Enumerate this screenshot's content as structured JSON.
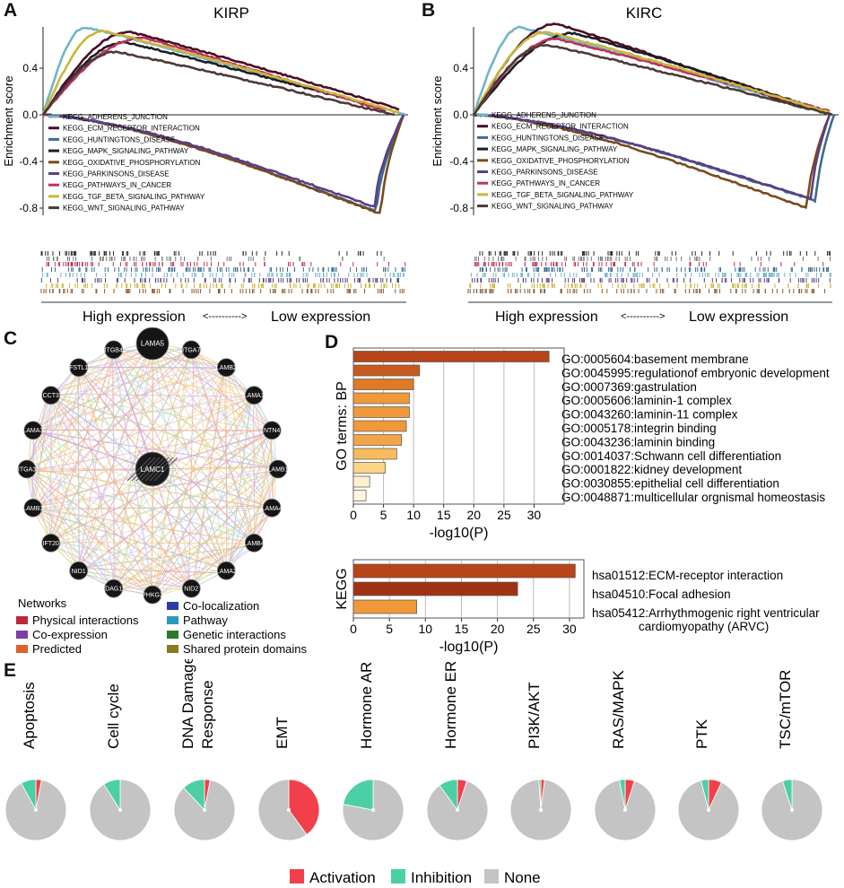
{
  "panels": {
    "a": "A",
    "b": "B",
    "c": "C",
    "d": "D",
    "e": "E"
  },
  "gsea": {
    "ylabel": "Enrichment score",
    "yticks": [
      "0.4",
      "0.0",
      "-0.4",
      "-0.8"
    ],
    "exp_high": "High expression",
    "exp_arrow": "<---------->",
    "exp_low": "Low expression",
    "kirp": {
      "title": "KIRP"
    },
    "kirc": {
      "title": "KIRC"
    },
    "pathways": [
      {
        "name": "KEGG_ADHERENS_JUNCTION",
        "color": "#6fb6c8"
      },
      {
        "name": "KEGG_ECM_RECEPTOR_INTERACTION",
        "color": "#4a0d25"
      },
      {
        "name": "KEGG_HUNTINGTONS_DISEASE",
        "color": "#3c6b8e"
      },
      {
        "name": "KEGG_MAPK_SIGNALING_PATHWAY",
        "color": "#1c1c24"
      },
      {
        "name": "KEGG_OXIDATIVE_PHOSPHORYLATION",
        "color": "#7a4a1c"
      },
      {
        "name": "KEGG_PARKINSONS_DISEASE",
        "color": "#5a3f86"
      },
      {
        "name": "KEGG_PATHWAYS_IN_CANCER",
        "color": "#c0325a"
      },
      {
        "name": "KEGG_TGF_BETA_SIGNALING_PATHWAY",
        "color": "#c9b63a"
      },
      {
        "name": "KEGG_WNT_SIGNALING_PATHWAY",
        "color": "#4a3a38"
      }
    ]
  },
  "network": {
    "center": "LAMC1",
    "nodes": [
      "LAMA5",
      "ITGA7",
      "LAMB2",
      "LAMA1",
      "NTN4",
      "LAMB1",
      "LAMA4",
      "LAMB4",
      "LAMA2",
      "NID2",
      "PHKG2",
      "DAG1",
      "NID1",
      "IFT20",
      "LAMB3",
      "ITGA3",
      "LAMA3",
      "CCT3",
      "FSTL1",
      "ITGB4"
    ],
    "legend_title": "Networks",
    "legend": [
      {
        "label": "Physical interactions",
        "color": "#c0283a"
      },
      {
        "label": "Co-expression",
        "color": "#7b3fa8"
      },
      {
        "label": "Predicted",
        "color": "#e0602a"
      },
      {
        "label": "Co-localization",
        "color": "#2a3aa8"
      },
      {
        "label": "Pathway",
        "color": "#2a9ab8"
      },
      {
        "label": "Genetic interactions",
        "color": "#2a7a2a"
      },
      {
        "label": "Shared protein domains",
        "color": "#8a7a20"
      }
    ]
  },
  "chart_data": [
    {
      "type": "bar",
      "title": "",
      "ylabel": "GO terms: BP",
      "xlabel": "-log10(P)",
      "xlim": [
        0,
        35
      ],
      "xticks": [
        "0",
        "5",
        "10",
        "15",
        "20",
        "25",
        "30"
      ],
      "categories": [
        "GO:0005604:basement membrane",
        "GO:0045995:regulationof embryonic development",
        "GO:0007369:gastrulation",
        "GO:0005606:laminin-1 complex",
        "GO:0043260:laminin-11 complex",
        "GO:0005178:integrin binding",
        "GO:0043236:laminin binding",
        "GO:0014037:Schwann cell differentiation",
        "GO:0001822:kidney development",
        "GO:0030855:epithelial cell differentiation",
        "GO:0048871:multicellular orgnismal homeostasis"
      ],
      "values": [
        32.5,
        11,
        10,
        9.3,
        9.3,
        8.8,
        8.0,
        7.2,
        5.3,
        2.7,
        2.1
      ],
      "colors": [
        "#b8441a",
        "#c85a1e",
        "#e07a26",
        "#f0983a",
        "#f0983a",
        "#f0983a",
        "#f4a448",
        "#f8bb5c",
        "#fbd584",
        "#fdf2cc",
        "#fdf6dd"
      ]
    },
    {
      "type": "bar",
      "title": "",
      "ylabel": "KEGG",
      "xlabel": "-log10(P)",
      "xlim": [
        0,
        32
      ],
      "xticks": [
        "0",
        "5",
        "10",
        "15",
        "20",
        "25",
        "30"
      ],
      "categories": [
        "hsa01512:ECM-receptor interaction",
        "hsa04510:Focal adhesion",
        "hsa05412:Arrhythmogenic right ventricular cardiomyopathy (ARVC)"
      ],
      "label_lines": [
        [
          "hsa01512:ECM-receptor interaction"
        ],
        [
          "hsa04510:Focal adhesion"
        ],
        [
          "hsa05412:Arrhythmogenic right ventricular",
          "cardiomyopathy (ARVC)"
        ]
      ],
      "values": [
        30.8,
        22.8,
        8.8
      ],
      "colors": [
        "#b8441a",
        "#a03214",
        "#f0983a"
      ]
    },
    {
      "type": "pie",
      "categories": [
        "Apoptosis",
        "Cell cycle",
        "DNA Damage\nResponse",
        "EMT",
        "Hormone AR",
        "Hormone ER",
        "PI3K/AKT",
        "RAS/MAPK",
        "PTK",
        "TSC/mTOR"
      ],
      "series": [
        {
          "name": "Activation",
          "values": [
            0.03,
            0.0,
            0.03,
            0.4,
            0.0,
            0.05,
            0.02,
            0.05,
            0.07,
            0.0
          ]
        },
        {
          "name": "Inhibition",
          "values": [
            0.08,
            0.09,
            0.12,
            0.0,
            0.22,
            0.1,
            0.01,
            0.03,
            0.04,
            0.05
          ]
        },
        {
          "name": "None",
          "values": [
            0.89,
            0.91,
            0.85,
            0.6,
            0.78,
            0.85,
            0.97,
            0.92,
            0.89,
            0.95
          ]
        }
      ],
      "colors": {
        "Activation": "#f2404a",
        "Inhibition": "#4ccfa5",
        "None": "#c4c4c4"
      },
      "legend": [
        "Activation",
        "Inhibition",
        "None"
      ]
    }
  ]
}
